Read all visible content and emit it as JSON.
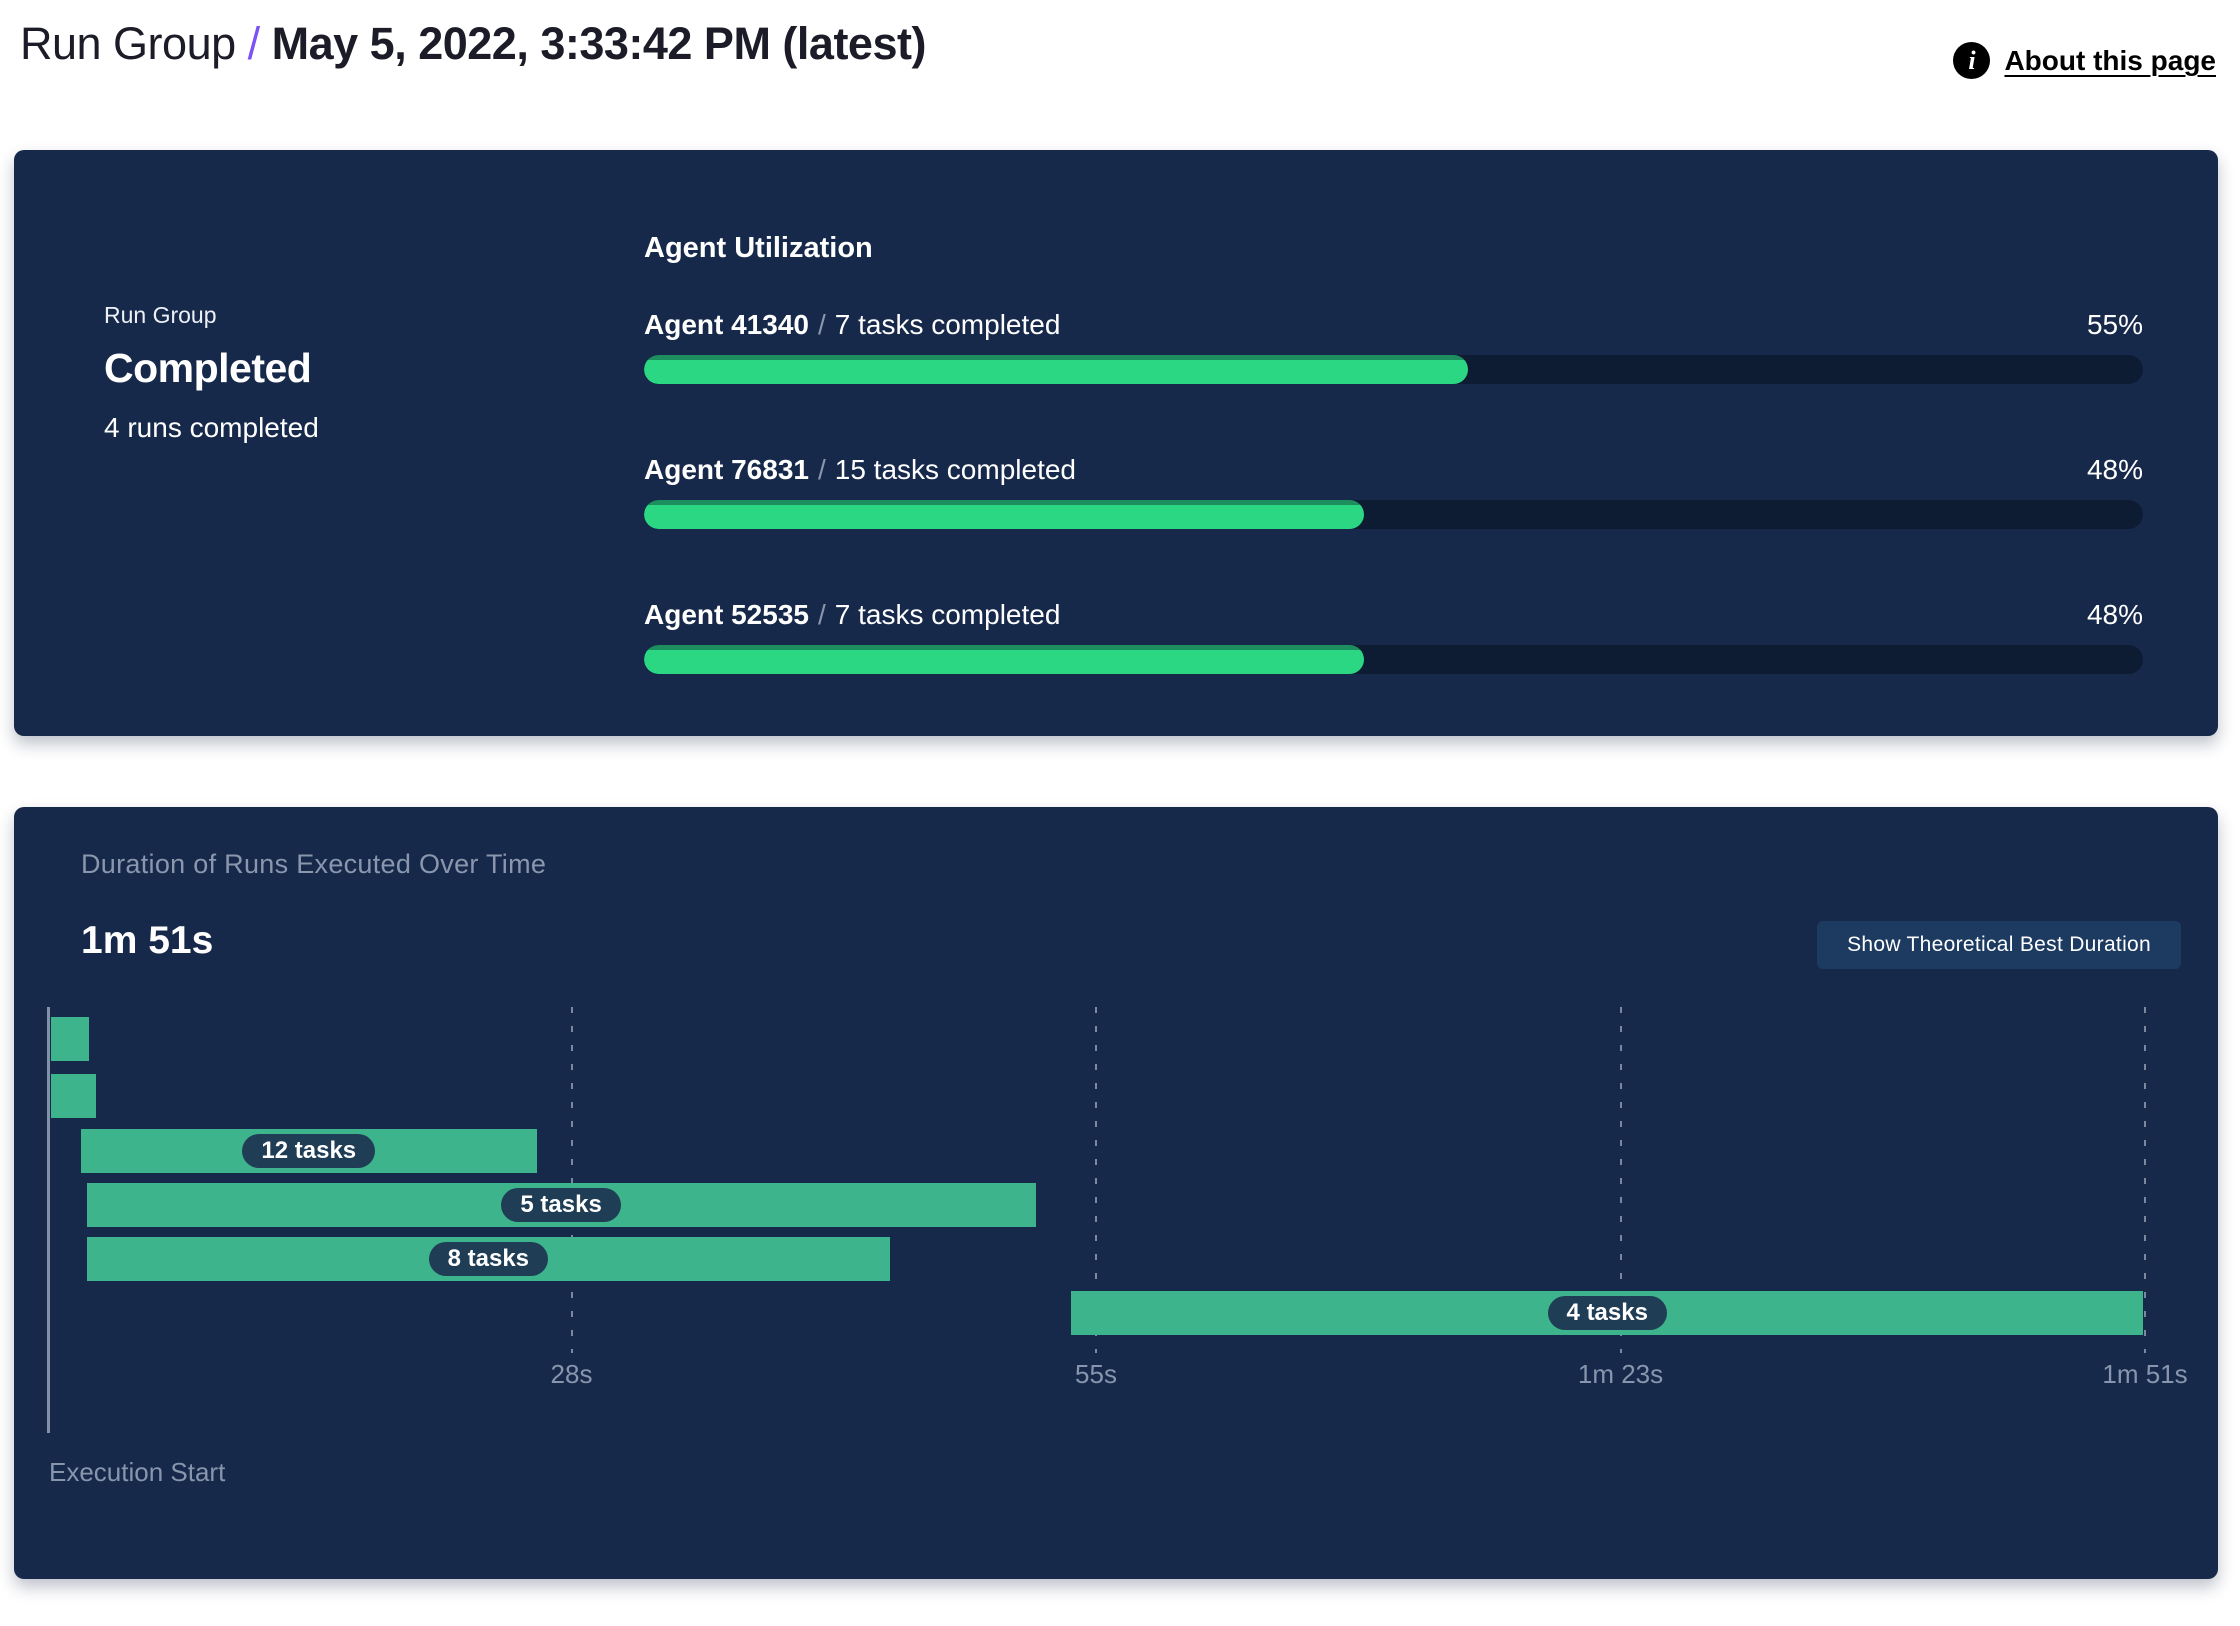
{
  "header": {
    "breadcrumb_root": "Run Group",
    "separator": "/",
    "title": "May 5, 2022, 3:33:42 PM (latest)",
    "about_label": "About this page"
  },
  "status_panel": {
    "label": "Run Group",
    "status": "Completed",
    "runs_completed": "4 runs completed",
    "utilization": {
      "title": "Agent Utilization",
      "separator": "/",
      "agents": [
        {
          "name": "Agent 41340",
          "tasks": "7 tasks completed",
          "percent": 55,
          "percent_label": "55%"
        },
        {
          "name": "Agent 76831",
          "tasks": "15 tasks completed",
          "percent": 48,
          "percent_label": "48%"
        },
        {
          "name": "Agent 52535",
          "tasks": "7 tasks completed",
          "percent": 48,
          "percent_label": "48%"
        }
      ]
    }
  },
  "duration_panel": {
    "title": "Duration of Runs Executed Over Time",
    "total_duration": "1m 51s",
    "button_label": "Show Theoretical Best Duration",
    "execution_start_label": "Execution Start"
  },
  "chart_data": {
    "type": "gantt",
    "title": "Duration of Runs Executed Over Time",
    "total_duration_label": "1m 51s",
    "x_axis": {
      "label": "Execution Start",
      "min_s": 0,
      "max_s": 111,
      "ticks": [
        {
          "position_s": 27.75,
          "label": "28s"
        },
        {
          "position_s": 55.5,
          "label": "55s"
        },
        {
          "position_s": 83.25,
          "label": "1m 23s"
        },
        {
          "position_s": 111,
          "label": "1m 51s"
        }
      ]
    },
    "bars": [
      {
        "row": 1,
        "start_s": 0.2,
        "end_s": 2.2,
        "label": ""
      },
      {
        "row": 2,
        "start_s": 0.2,
        "end_s": 2.6,
        "label": ""
      },
      {
        "row": 3,
        "start_s": 1.8,
        "end_s": 25.9,
        "label": "12 tasks"
      },
      {
        "row": 4,
        "start_s": 2.1,
        "end_s": 52.3,
        "label": "5 tasks"
      },
      {
        "row": 5,
        "start_s": 2.1,
        "end_s": 44.6,
        "label": "8 tasks"
      },
      {
        "row": 6,
        "start_s": 54.2,
        "end_s": 110.9,
        "label": "4 tasks"
      }
    ],
    "grid": "dashed-vertical",
    "legend": "none"
  },
  "colors": {
    "panel_bg": "#17294a",
    "accent_slash": "#7a52f5",
    "progress_fill": "#2bd783",
    "progress_fill_edge": "#1d8f5e",
    "progress_track": "#0e1c33",
    "gantt_bar": "#3db48b",
    "pill_bg": "#1f3d55",
    "button_bg": "#1d3b61",
    "muted_text": "#8a96ad"
  }
}
